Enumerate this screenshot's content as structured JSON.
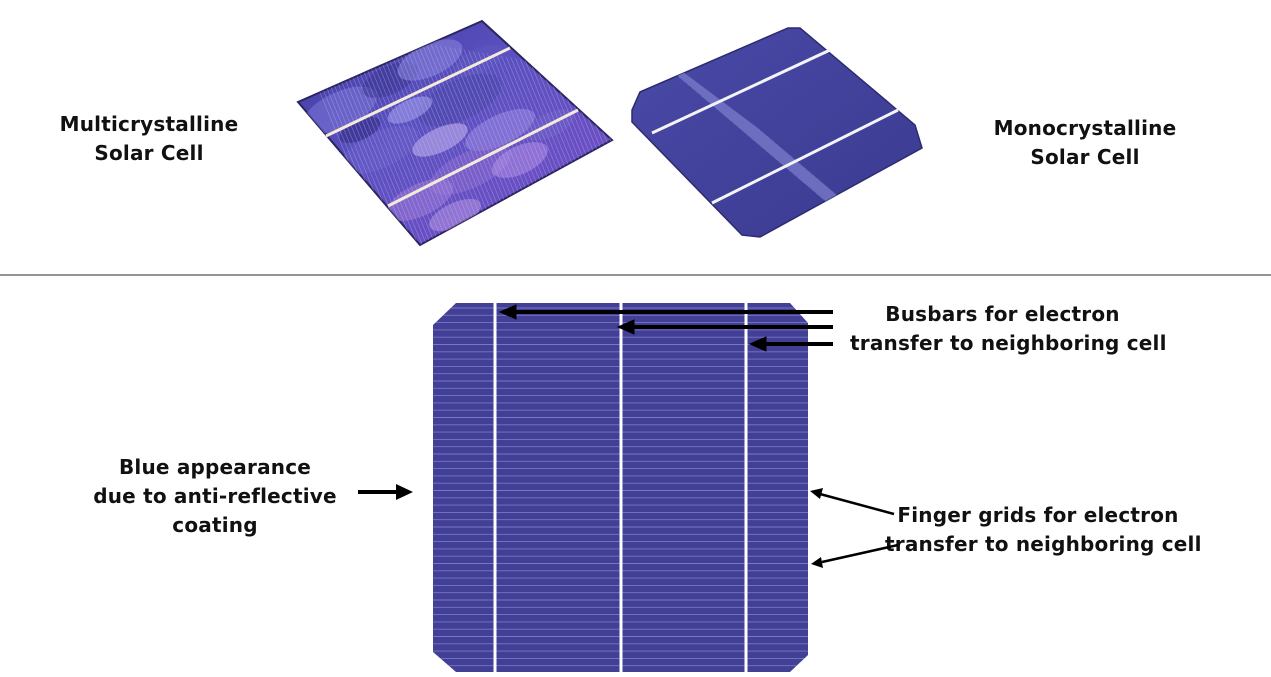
{
  "top": {
    "multi_label": [
      "Multicrystalline",
      "Solar Cell"
    ],
    "mono_label": [
      "Monocrystalline",
      "Solar Cell"
    ]
  },
  "bottom": {
    "busbars_label": [
      "Busbars  for electron",
      "transfer to neighboring cell"
    ],
    "blue_label": [
      "Blue appearance",
      "due to anti-reflective",
      "coating"
    ],
    "finger_label": [
      "Finger grids for electron",
      "transfer to neighboring cell"
    ]
  },
  "colors": {
    "cell_blue": "#423f96",
    "multi_blue": "#5a4fb8",
    "multi_purple": "#8a6fd8",
    "busbar": "#ffffff",
    "arrow": "#000000",
    "divider": "#555555"
  }
}
